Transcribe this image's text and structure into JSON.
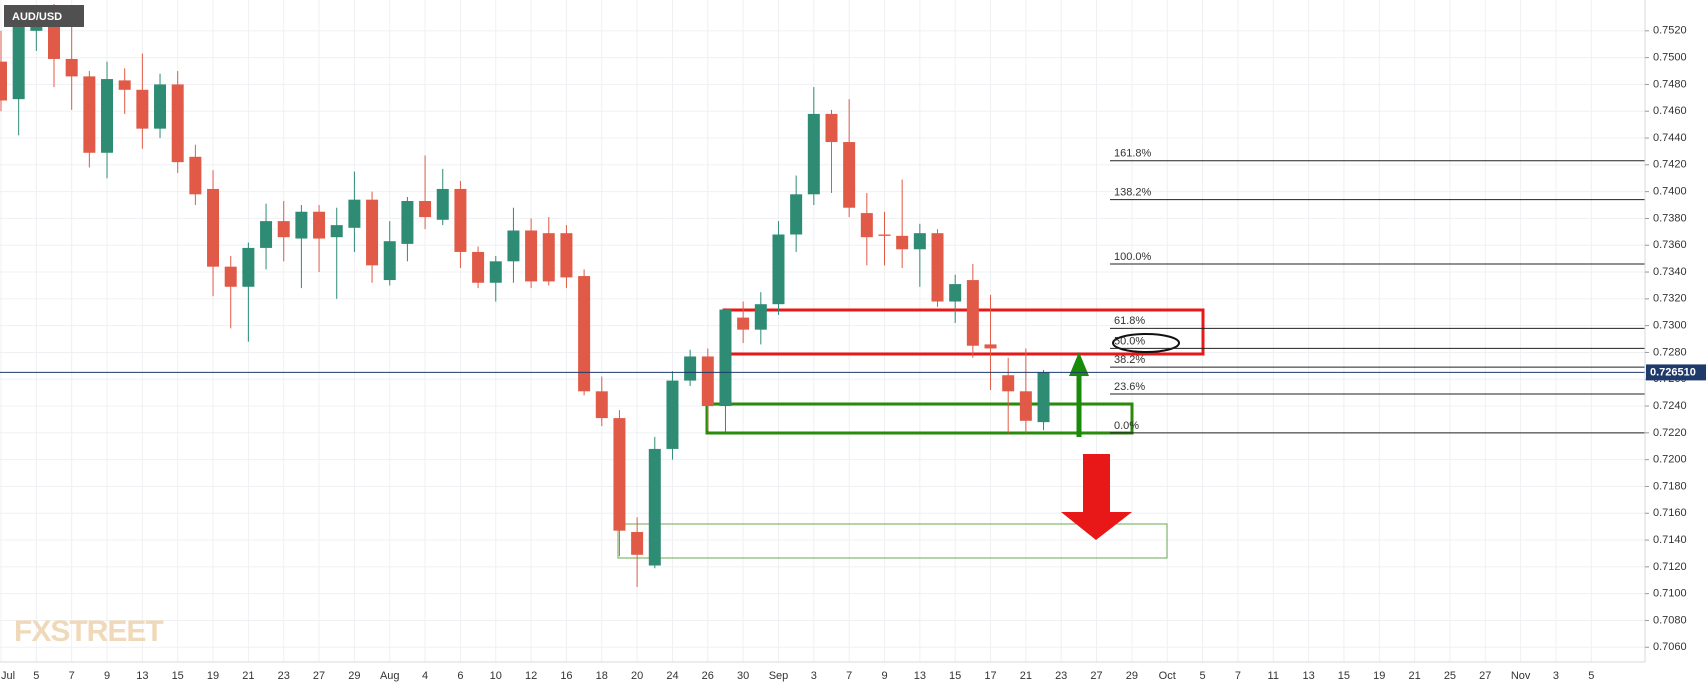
{
  "chart_data": {
    "type": "candlestick",
    "title": "AUD/USD",
    "watermark": "FXSTREET",
    "up_color": "#2e8b74",
    "down_color": "#e05a47",
    "grid": true,
    "categories": [
      "Jul",
      null,
      "5",
      null,
      "7",
      null,
      "9",
      null,
      "13",
      null,
      "15",
      null,
      "19",
      null,
      "21",
      null,
      "23",
      null,
      "27",
      null,
      "29",
      null,
      "Aug",
      null,
      "4",
      null,
      "6",
      null,
      "10",
      null,
      "12",
      null,
      "16",
      null,
      "18",
      null,
      "20",
      null,
      "24",
      null,
      "26",
      null,
      "30",
      null,
      "Sep",
      null,
      "3",
      null,
      "7",
      null,
      "9",
      null,
      "13",
      null,
      "15",
      null,
      "17",
      null,
      "21",
      null,
      "23",
      null,
      "27",
      null,
      "29",
      null,
      "Oct",
      null,
      "5",
      null,
      "7",
      null,
      "11",
      null,
      "13",
      null,
      "15",
      null,
      "19",
      null,
      "21",
      null,
      "25",
      null,
      "27",
      null,
      "Nov",
      null,
      "3",
      null,
      "5"
    ],
    "open": [
      0.7497,
      0.7469,
      0.752,
      0.7535,
      0.7499,
      0.7486,
      0.7429,
      0.7483,
      0.7476,
      0.7447,
      0.748,
      0.7426,
      0.7402,
      0.7344,
      0.7329,
      0.7358,
      0.7378,
      0.7365,
      0.7385,
      0.7366,
      0.7373,
      0.7394,
      0.7334,
      0.7361,
      0.7393,
      0.7379,
      0.7402,
      0.7355,
      0.7332,
      0.7348,
      0.7371,
      0.7369,
      0.7369,
      0.7337,
      0.7251,
      0.7231,
      0.7146,
      0.7121,
      0.7208,
      0.7259,
      0.7277,
      0.724,
      0.7306,
      0.7297,
      0.7316,
      0.7368,
      0.7398,
      0.7458,
      0.7437,
      0.7384,
      0.7368,
      0.7367,
      0.7357,
      0.7369,
      0.7318,
      0.7334,
      0.7286,
      0.7263,
      0.7251,
      0.7228,
      null,
      null,
      null,
      null,
      null,
      null,
      null,
      null,
      null,
      null,
      null,
      null,
      null,
      null,
      null,
      null,
      null,
      null,
      null,
      null,
      null,
      null,
      null,
      null,
      null,
      null,
      null,
      null,
      null,
      null,
      null
    ],
    "high": [
      0.752,
      0.7535,
      0.7535,
      0.754,
      0.7535,
      0.749,
      0.7497,
      0.7492,
      0.7503,
      0.7488,
      0.749,
      0.7435,
      0.7416,
      0.7352,
      0.7362,
      0.7391,
      0.7393,
      0.739,
      0.739,
      0.7388,
      0.7415,
      0.74,
      0.7378,
      0.7396,
      0.7427,
      0.7417,
      0.7408,
      0.7359,
      0.7352,
      0.7388,
      0.738,
      0.7381,
      0.7375,
      0.7342,
      0.7262,
      0.7237,
      0.7157,
      0.7217,
      0.7266,
      0.7282,
      0.7283,
      0.7313,
      0.7318,
      0.7325,
      0.7378,
      0.7412,
      0.7478,
      0.7461,
      0.7469,
      0.7399,
      0.7385,
      0.7409,
      0.7376,
      0.7372,
      0.7338,
      0.7346,
      0.7323,
      0.7276,
      0.7283,
      0.7267,
      null,
      null,
      null,
      null,
      null,
      null,
      null,
      null,
      null,
      null,
      null,
      null,
      null,
      null,
      null,
      null,
      null,
      null,
      null,
      null,
      null,
      null,
      null,
      null,
      null,
      null,
      null,
      null,
      null,
      null,
      null
    ],
    "low": [
      0.746,
      0.7442,
      0.7505,
      0.7478,
      0.7461,
      0.7418,
      0.741,
      0.7458,
      0.7432,
      0.744,
      0.7414,
      0.739,
      0.7322,
      0.7298,
      0.7288,
      0.7342,
      0.7348,
      0.7328,
      0.734,
      0.732,
      0.7355,
      0.7332,
      0.733,
      0.7348,
      0.7372,
      0.7375,
      0.7343,
      0.7328,
      0.7318,
      0.7332,
      0.7328,
      0.733,
      0.7328,
      0.7248,
      0.7225,
      0.7128,
      0.7105,
      0.7119,
      0.72,
      0.7255,
      0.7222,
      0.7221,
      0.7287,
      0.7286,
      0.7308,
      0.7355,
      0.739,
      0.7399,
      0.7381,
      0.7345,
      0.7345,
      0.7343,
      0.7329,
      0.7314,
      0.7302,
      0.7276,
      0.7252,
      0.722,
      0.722,
      0.7222,
      null,
      null,
      null,
      null,
      null,
      null,
      null,
      null,
      null,
      null,
      null,
      null,
      null,
      null,
      null,
      null,
      null,
      null,
      null,
      null,
      null,
      null,
      null,
      null,
      null,
      null,
      null,
      null,
      null,
      null,
      null
    ],
    "close": [
      0.7468,
      0.7528,
      0.7527,
      0.7499,
      0.7486,
      0.7429,
      0.7484,
      0.7476,
      0.7447,
      0.748,
      0.7422,
      0.7398,
      0.7344,
      0.7329,
      0.7358,
      0.7378,
      0.7366,
      0.7385,
      0.7365,
      0.7375,
      0.7394,
      0.7345,
      0.7363,
      0.7393,
      0.7381,
      0.7402,
      0.7355,
      0.7332,
      0.7348,
      0.7371,
      0.7333,
      0.7333,
      0.7336,
      0.7251,
      0.7231,
      0.7147,
      0.7129,
      0.7208,
      0.7259,
      0.7277,
      0.724,
      0.7312,
      0.7297,
      0.7316,
      0.7368,
      0.7398,
      0.7458,
      0.7437,
      0.7388,
      0.7366,
      0.7367,
      0.7357,
      0.7369,
      0.7318,
      0.7331,
      0.7285,
      0.7283,
      0.7251,
      0.7229,
      0.7265,
      null,
      null,
      null,
      null,
      null,
      null,
      null,
      null,
      null,
      null,
      null,
      null,
      null,
      null,
      null,
      null,
      null,
      null,
      null,
      null,
      null,
      null,
      null,
      null,
      null,
      null,
      null,
      null,
      null,
      null,
      null
    ],
    "ylim": [
      0.7049,
      0.7543
    ],
    "yticks": [
      {
        "value": 0.706,
        "label": "0.7060"
      },
      {
        "value": 0.708,
        "label": "0.7080"
      },
      {
        "value": 0.71,
        "label": "0.7100"
      },
      {
        "value": 0.712,
        "label": "0.7120"
      },
      {
        "value": 0.714,
        "label": "0.7140"
      },
      {
        "value": 0.716,
        "label": "0.7160"
      },
      {
        "value": 0.718,
        "label": "0.7180"
      },
      {
        "value": 0.72,
        "label": "0.7200"
      },
      {
        "value": 0.722,
        "label": "0.7220"
      },
      {
        "value": 0.724,
        "label": "0.7240"
      },
      {
        "value": 0.726,
        "label": "0.7260"
      },
      {
        "value": 0.728,
        "label": "0.7280"
      },
      {
        "value": 0.73,
        "label": "0.7300"
      },
      {
        "value": 0.732,
        "label": "0.7320"
      },
      {
        "value": 0.734,
        "label": "0.7340"
      },
      {
        "value": 0.736,
        "label": "0.7360"
      },
      {
        "value": 0.738,
        "label": "0.7380"
      },
      {
        "value": 0.74,
        "label": "0.7400"
      },
      {
        "value": 0.742,
        "label": "0.7420"
      },
      {
        "value": 0.744,
        "label": "0.7440"
      },
      {
        "value": 0.746,
        "label": "0.7460"
      },
      {
        "value": 0.748,
        "label": "0.7480"
      },
      {
        "value": 0.75,
        "label": "0.7500"
      },
      {
        "value": 0.752,
        "label": "0.7520"
      }
    ],
    "current_price": {
      "value": 0.72651,
      "label": "0.726510"
    },
    "fib_levels": [
      {
        "value": 0.7423,
        "label": "161.8%"
      },
      {
        "value": 0.7394,
        "label": "138.2%"
      },
      {
        "value": 0.7346,
        "label": "100.0%"
      },
      {
        "value": 0.7298,
        "label": "61.8%"
      },
      {
        "value": 0.7283,
        "label": "50.0%"
      },
      {
        "value": 0.7269,
        "label": "38.2%"
      },
      {
        "value": 0.7249,
        "label": "23.6%"
      },
      {
        "value": 0.722,
        "label": "0.0%"
      }
    ]
  }
}
